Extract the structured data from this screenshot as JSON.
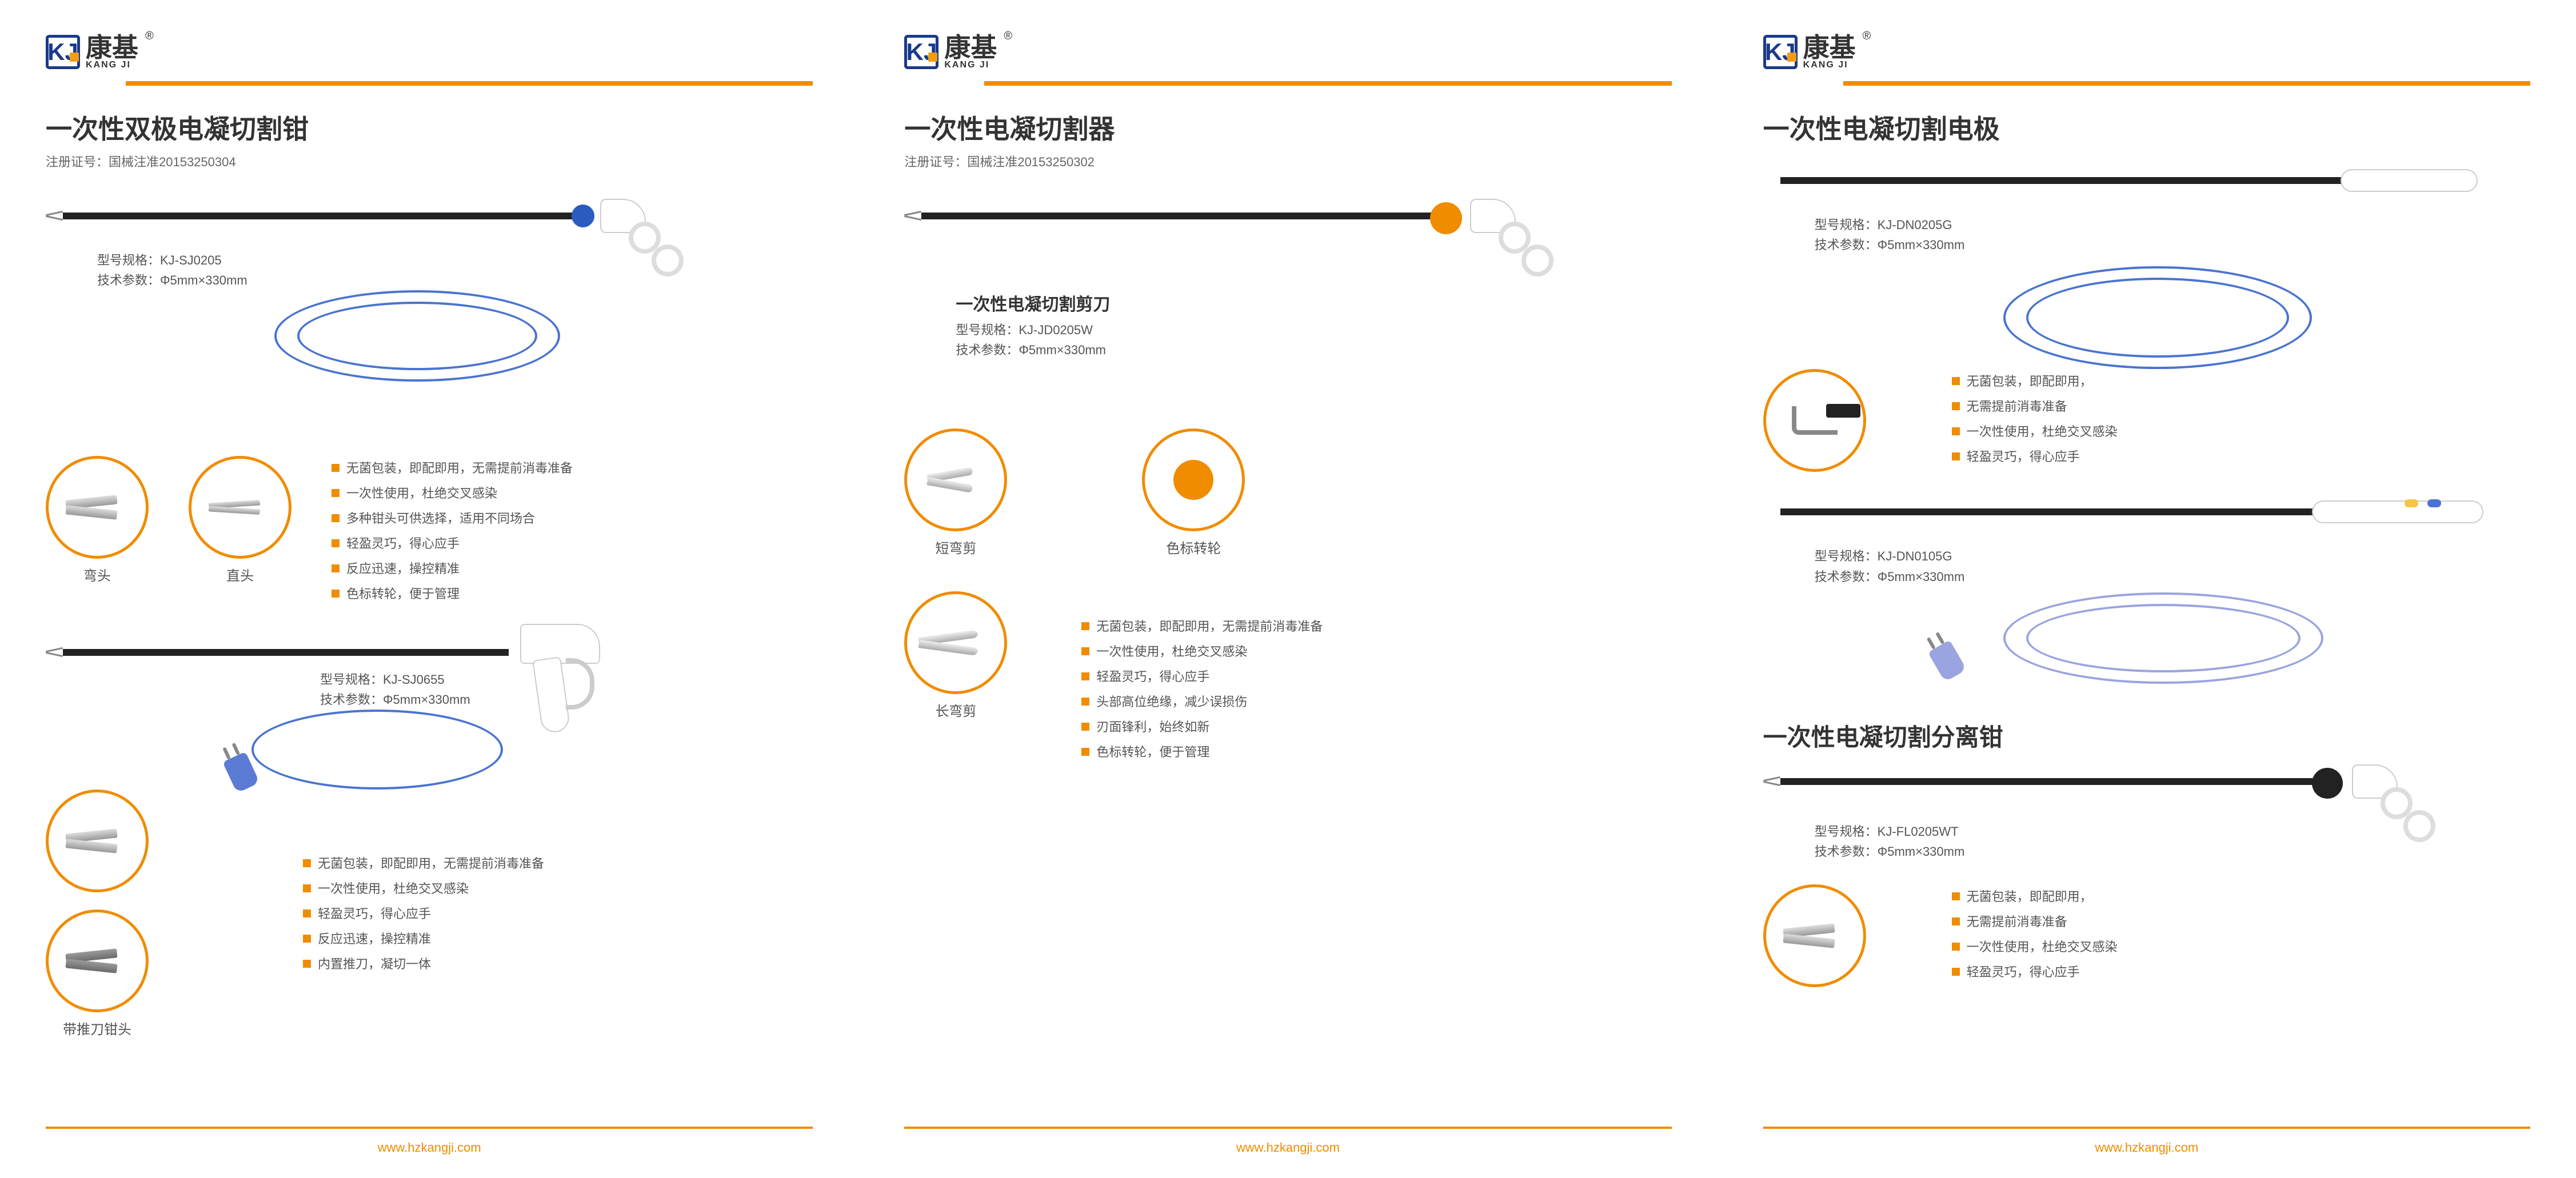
{
  "brand": {
    "cn": "康基",
    "en": "KANG JI",
    "reg": "®",
    "logo_letter": "KJ"
  },
  "colors": {
    "orange": "#f08c00",
    "blue": "#2b5bbf",
    "navy": "#1a3a8a",
    "lilac": "#9aa4e0",
    "cable_blue": "#4a74d0"
  },
  "url": "www.hzkangji.com",
  "panel1": {
    "title": "一次性双极电凝切割钳",
    "reg": "注册证号：国械注准20153250304",
    "p1": {
      "model": "型号规格：KJ-SJ0205",
      "spec": "技术参数：Φ5mm×330mm"
    },
    "c1": "弯头",
    "c2": "直头",
    "c3": "带推刀钳头",
    "f1": [
      "无菌包装，即配即用，无需提前消毒准备",
      "一次性使用，杜绝交叉感染",
      "多种钳头可供选择，适用不同场合",
      "轻盈灵巧，得心应手",
      "反应迅速，操控精准",
      "色标转轮，便于管理"
    ],
    "p2": {
      "model": "型号规格：KJ-SJ0655",
      "spec": "技术参数：Φ5mm×330mm"
    },
    "f2": [
      "无菌包装，即配即用，无需提前消毒准备",
      "一次性使用，杜绝交叉感染",
      "轻盈灵巧，得心应手",
      "反应迅速，操控精准",
      "内置推刀，凝切一体"
    ]
  },
  "panel2": {
    "title": "一次性电凝切割器",
    "reg": "注册证号：国械注准20153250302",
    "sub": "一次性电凝切割剪刀",
    "p1": {
      "model": "型号规格：KJ-JD0205W",
      "spec": "技术参数：Φ5mm×330mm"
    },
    "c1": "短弯剪",
    "c2": "色标转轮",
    "c3": "长弯剪",
    "f1": [
      "无菌包装，即配即用，无需提前消毒准备",
      "一次性使用，杜绝交叉感染",
      "轻盈灵巧，得心应手",
      "头部高位绝缘，减少误损伤",
      "刃面锋利，始终如新",
      "色标转轮，便于管理"
    ]
  },
  "panel3": {
    "t1": "一次性电凝切割电极",
    "p1": {
      "model": "型号规格：KJ-DN0205G",
      "spec": "技术参数：Φ5mm×330mm"
    },
    "f1": [
      "无菌包装，即配即用，",
      "无需提前消毒准备",
      "一次性使用，杜绝交叉感染",
      "轻盈灵巧，得心应手"
    ],
    "p2": {
      "model": "型号规格：KJ-DN0105G",
      "spec": "技术参数：Φ5mm×330mm"
    },
    "t2": "一次性电凝切割分离钳",
    "p3": {
      "model": "型号规格：KJ-FL0205WT",
      "spec": "技术参数：Φ5mm×330mm"
    },
    "f2": [
      "无菌包装，即配即用，",
      "无需提前消毒准备",
      "一次性使用，杜绝交叉感染",
      "轻盈灵巧，得心应手"
    ]
  }
}
